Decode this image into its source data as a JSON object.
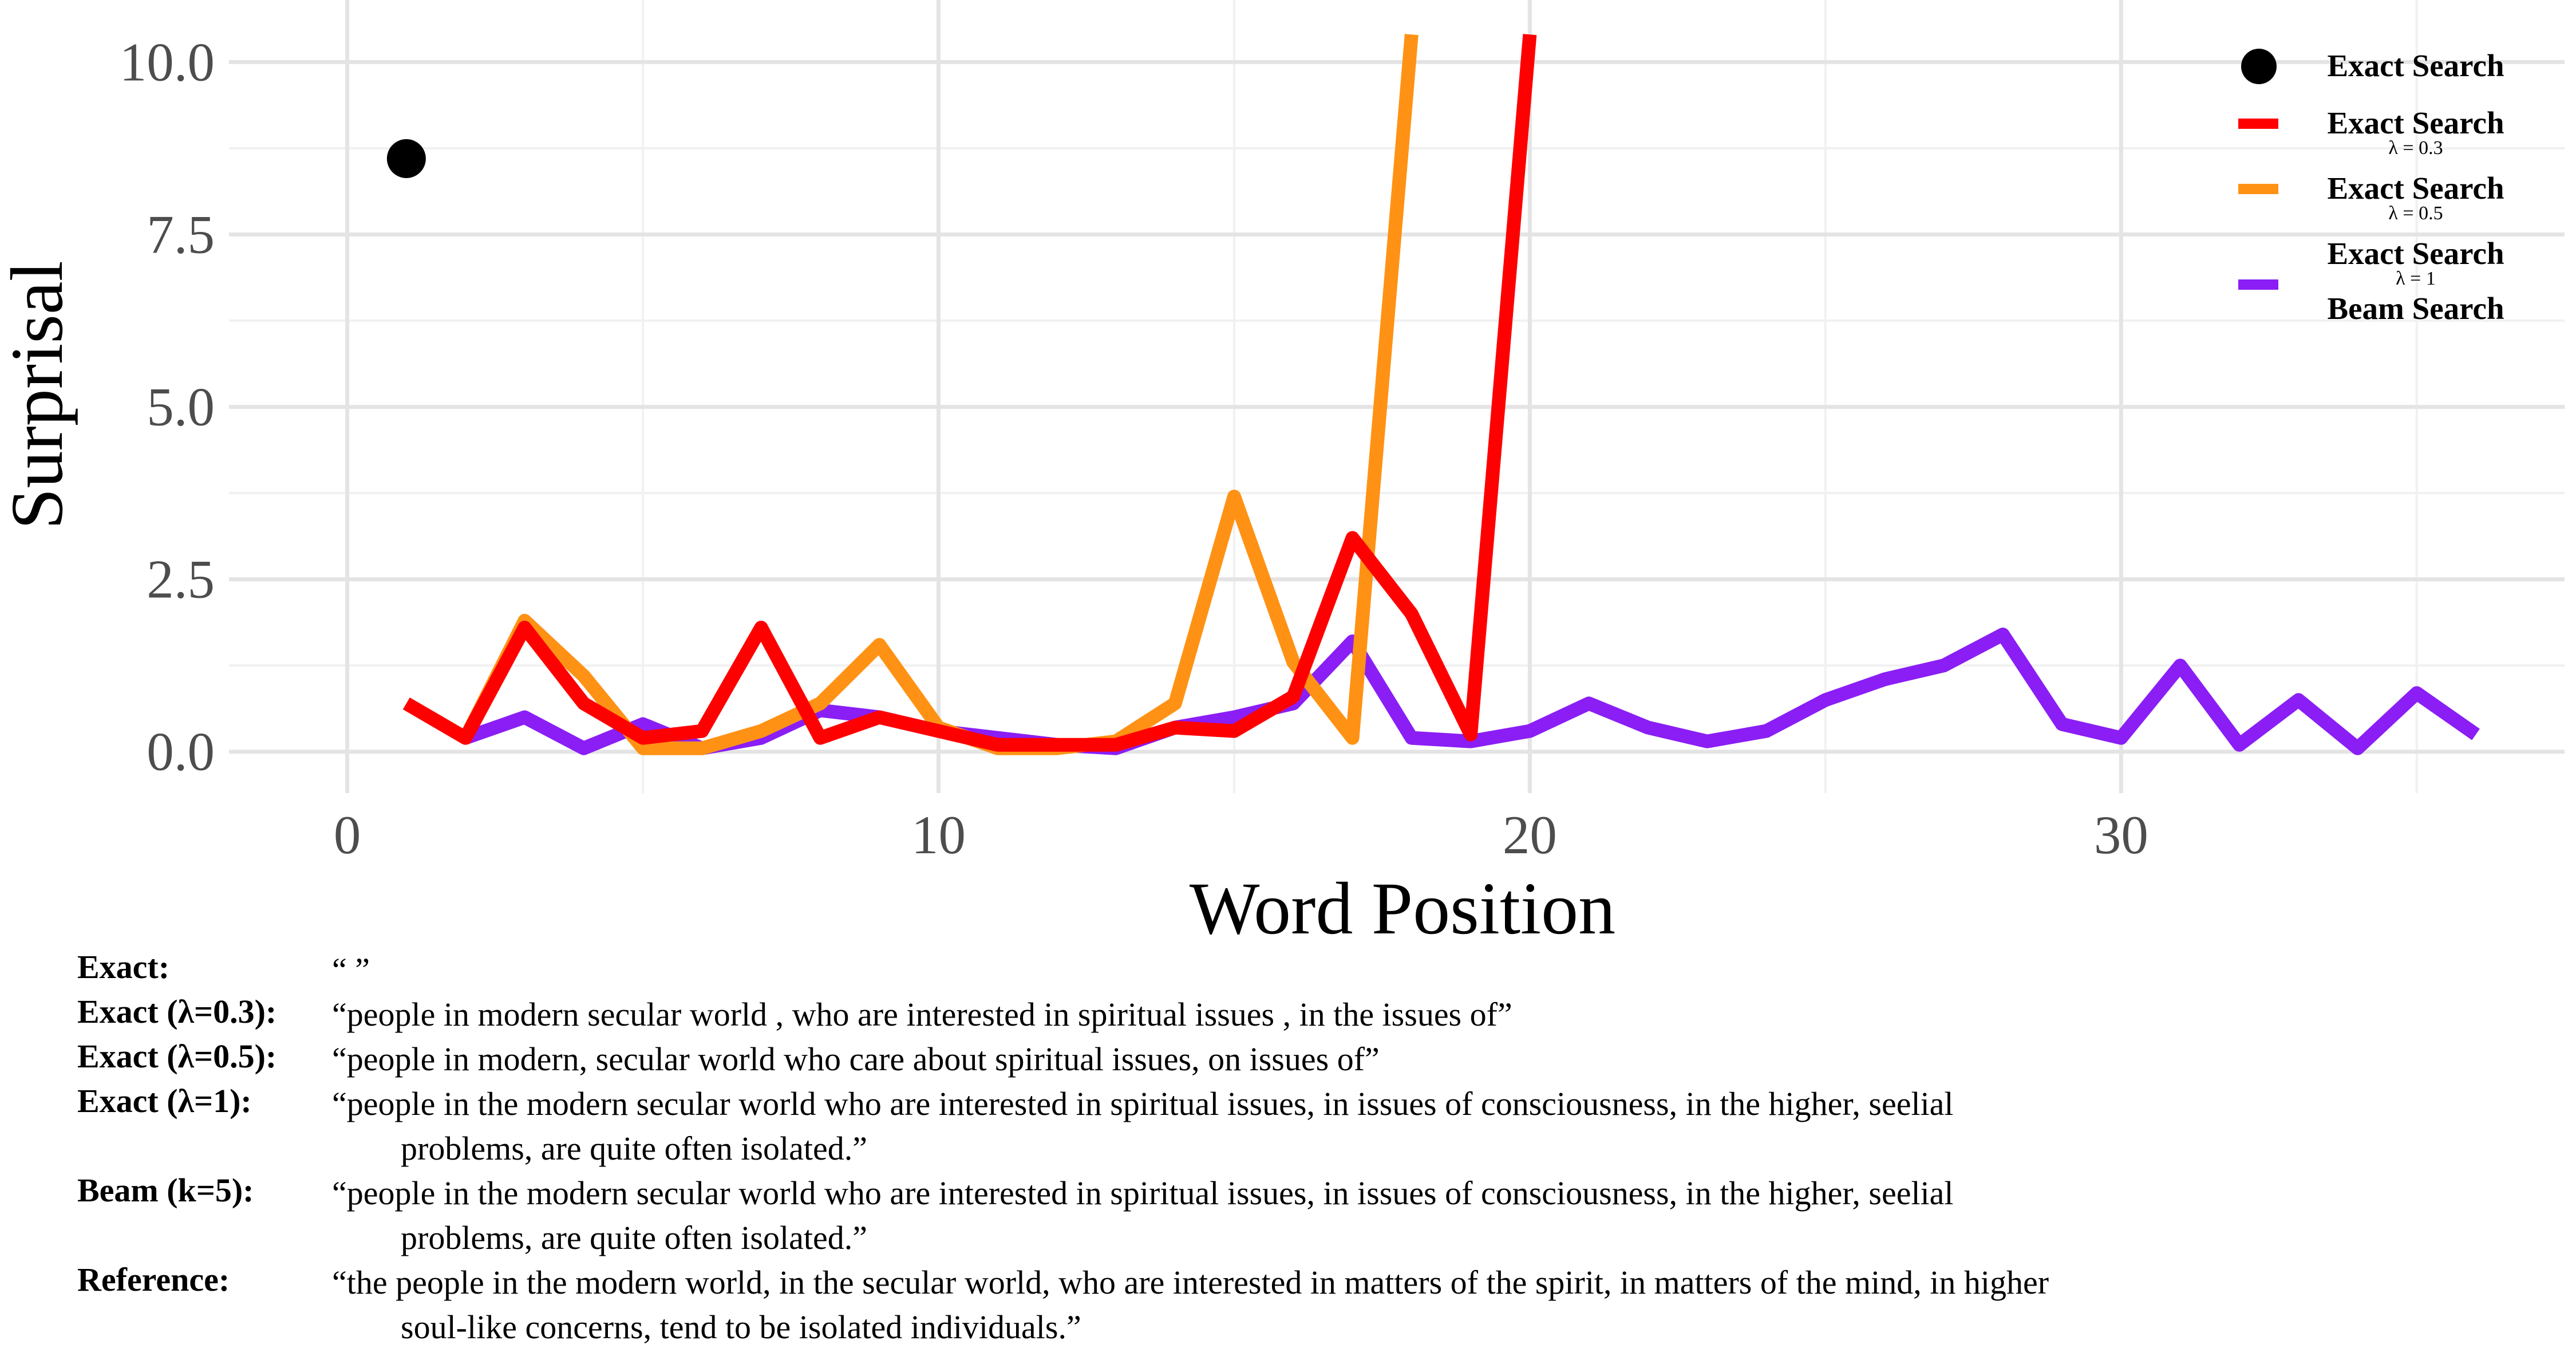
{
  "chart_data": {
    "type": "line",
    "xlabel": "Word Position",
    "ylabel": "Surprisal",
    "xlim": [
      -2,
      37.5
    ],
    "ylim": [
      -0.6,
      10.9
    ],
    "xticks": [
      "0",
      "10",
      "20",
      "30"
    ],
    "xtick_values": [
      0,
      10,
      20,
      30
    ],
    "yticks": [
      "0.0",
      "2.5",
      "5.0",
      "7.5",
      "10.0"
    ],
    "ytick_values": [
      0,
      2.5,
      5,
      7.5,
      10
    ],
    "grid": true,
    "legend_position": "top-right",
    "series": [
      {
        "name": "Exact Search",
        "style": "point",
        "color": "#000000",
        "x": [
          1
        ],
        "y": [
          8.6
        ]
      },
      {
        "name": "Exact Search λ = 0.3",
        "style": "line",
        "color": "#ff0000",
        "x": [
          1,
          2,
          3,
          4,
          5,
          6,
          7,
          8,
          9,
          10,
          11,
          12,
          13,
          14,
          15,
          16,
          17,
          18,
          19,
          20
        ],
        "y": [
          0.7,
          0.2,
          1.8,
          0.7,
          0.2,
          0.3,
          1.8,
          0.2,
          0.5,
          0.3,
          0.1,
          0.1,
          0.1,
          0.35,
          0.3,
          0.8,
          3.1,
          2.0,
          0.25,
          10.4
        ]
      },
      {
        "name": "Exact Search λ = 0.5",
        "style": "line",
        "color": "#ff9214",
        "x": [
          1,
          2,
          3,
          4,
          5,
          6,
          7,
          8,
          9,
          10,
          11,
          12,
          13,
          14,
          15,
          16,
          17,
          18
        ],
        "y": [
          0.7,
          0.2,
          1.9,
          1.1,
          0.05,
          0.05,
          0.3,
          0.7,
          1.55,
          0.35,
          0.05,
          0.05,
          0.15,
          0.7,
          3.7,
          1.3,
          0.2,
          10.4
        ]
      },
      {
        "name": "Exact Search λ = 1 Beam Search",
        "style": "line",
        "color": "#8a1ef5",
        "x": [
          2,
          3,
          4,
          5,
          6,
          7,
          8,
          9,
          10,
          11,
          12,
          13,
          14,
          15,
          16,
          17,
          18,
          19,
          20,
          21,
          22,
          23,
          24,
          25,
          26,
          27,
          28,
          29,
          30,
          31,
          32,
          33,
          34,
          35,
          36
        ],
        "y": [
          0.2,
          0.5,
          0.05,
          0.4,
          0.05,
          0.2,
          0.6,
          0.5,
          0.3,
          0.2,
          0.1,
          0.05,
          0.35,
          0.5,
          0.7,
          1.6,
          0.2,
          0.15,
          0.3,
          0.7,
          0.35,
          0.15,
          0.3,
          0.75,
          1.05,
          1.25,
          1.7,
          0.4,
          0.2,
          1.25,
          0.1,
          0.75,
          0.05,
          0.85,
          0.25
        ]
      }
    ]
  },
  "legend": {
    "items": [
      {
        "label": "Exact Search",
        "sub": "",
        "color": "#000000",
        "shape": "dot"
      },
      {
        "label": "Exact Search",
        "sub": "λ = 0.3",
        "color": "#ff0000",
        "shape": "line"
      },
      {
        "label": "Exact Search",
        "sub": "λ = 0.5",
        "color": "#ff9214",
        "shape": "line"
      },
      {
        "label": "Exact Search",
        "sub": "λ = 1",
        "label2": "Beam Search",
        "color": "#8a1ef5",
        "shape": "line"
      }
    ]
  },
  "captions": [
    {
      "label": "Exact:",
      "text": "“ ”",
      "cont": ""
    },
    {
      "label": "Exact (λ=0.3):",
      "text": "“people in modern secular world , who are interested in spiritual issues , in the issues of”",
      "cont": ""
    },
    {
      "label": "Exact (λ=0.5):",
      "text": "“people in modern, secular world who care about spiritual issues, on issues of”",
      "cont": ""
    },
    {
      "label": "Exact (λ=1):",
      "text": "“people in the modern secular world who are interested in spiritual issues, in issues of consciousness, in the higher, seelial",
      "cont": "problems, are quite often isolated.”"
    },
    {
      "label": "Beam (k=5):",
      "text": "“people in the modern secular world who are interested in spiritual issues, in issues of consciousness, in the higher, seelial",
      "cont": "problems, are quite often isolated.”"
    },
    {
      "label": "Reference:",
      "text": "“the people in the modern world, in the secular world, who are interested in matters of the spirit, in matters of the mind, in higher",
      "cont": "soul-like concerns, tend to be isolated individuals.”"
    }
  ]
}
